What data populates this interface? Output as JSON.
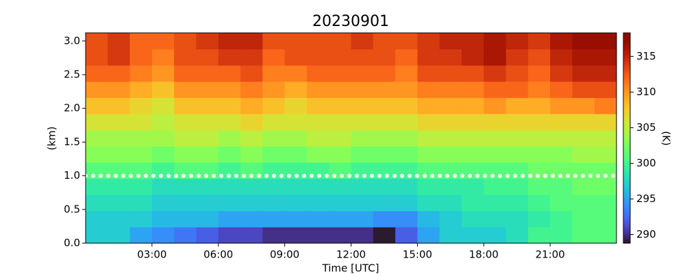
{
  "chart_data": {
    "type": "heatmap",
    "title": "20230901",
    "xlabel": "Time [UTC]",
    "ylabel": "(km)",
    "colorbar_label": "(K)",
    "colormap": "turbo",
    "xlim": [
      0,
      24
    ],
    "ylim": [
      0,
      3.12
    ],
    "clim": [
      288.8,
      318.3
    ],
    "xticks": [
      {
        "value": 3,
        "label": "03:00"
      },
      {
        "value": 6,
        "label": "06:00"
      },
      {
        "value": 9,
        "label": "09:00"
      },
      {
        "value": 12,
        "label": "12:00"
      },
      {
        "value": 15,
        "label": "15:00"
      },
      {
        "value": 18,
        "label": "18:00"
      },
      {
        "value": 21,
        "label": "21:00"
      }
    ],
    "yticks": [
      {
        "value": 0,
        "label": "0.0"
      },
      0.5,
      {
        "value": 1,
        "label": "1.0"
      },
      1.5,
      {
        "value": 2,
        "label": "2.0"
      },
      2.5,
      {
        "value": 3,
        "label": "3.0"
      }
    ],
    "cticks": [
      290,
      295,
      300,
      305,
      310,
      315
    ],
    "hline": 1,
    "hline_color": "#ffffff",
    "xbins": [
      0,
      1,
      2,
      3,
      4,
      5,
      6,
      7,
      8,
      9,
      10,
      11,
      12,
      13,
      14,
      15,
      16,
      17,
      18,
      19,
      20,
      21,
      22,
      23,
      24
    ],
    "ybins": [
      0,
      0.24,
      0.48,
      0.72,
      0.96,
      1.2,
      1.44,
      1.68,
      1.92,
      2.16,
      2.4,
      2.64,
      2.88,
      3.12
    ],
    "z": [
      [
        297,
        297,
        295,
        294,
        293,
        292,
        291,
        291,
        290,
        290,
        290,
        290,
        290,
        289,
        292,
        295,
        297,
        297,
        297,
        298,
        300,
        300,
        301,
        301
      ],
      [
        297,
        297,
        297,
        296,
        296,
        296,
        295,
        295,
        295,
        295,
        295,
        295,
        295,
        294,
        294,
        296,
        297,
        298,
        298,
        298,
        299,
        300,
        301,
        301
      ],
      [
        298,
        298,
        298,
        297,
        297,
        297,
        297,
        297,
        297,
        297,
        297,
        297,
        297,
        297,
        297,
        298,
        298,
        299,
        299,
        299,
        300,
        301,
        301,
        301
      ],
      [
        299,
        299,
        299,
        298,
        298,
        298,
        298,
        298,
        298,
        298,
        298,
        298,
        298,
        298,
        298,
        299,
        299,
        299,
        300,
        300,
        301,
        301,
        302,
        302
      ],
      [
        301,
        301,
        301,
        300,
        301,
        301,
        300,
        301,
        300,
        300,
        300,
        301,
        300,
        300,
        300,
        301,
        301,
        301,
        301,
        301,
        302,
        302,
        302,
        302
      ],
      [
        303,
        303,
        303,
        302,
        303,
        303,
        302,
        303,
        302,
        302,
        303,
        303,
        302,
        302,
        302,
        303,
        303,
        303,
        303,
        303,
        303,
        303,
        304,
        304
      ],
      [
        304,
        304,
        304,
        304,
        305,
        305,
        304,
        305,
        304,
        304,
        305,
        305,
        304,
        304,
        304,
        305,
        305,
        305,
        305,
        305,
        305,
        305,
        305,
        305
      ],
      [
        306,
        306,
        306,
        305,
        306,
        306,
        306,
        307,
        306,
        306,
        306,
        306,
        306,
        306,
        306,
        307,
        307,
        307,
        307,
        307,
        307,
        307,
        307,
        307
      ],
      [
        308,
        308,
        307,
        306,
        308,
        308,
        308,
        309,
        308,
        307,
        308,
        308,
        308,
        308,
        308,
        309,
        309,
        309,
        310,
        309,
        309,
        310,
        310,
        311
      ],
      [
        310,
        310,
        309,
        308,
        310,
        310,
        310,
        311,
        310,
        309,
        310,
        310,
        310,
        310,
        310,
        311,
        311,
        311,
        312,
        312,
        311,
        312,
        313,
        313
      ],
      [
        312,
        312,
        311,
        310,
        312,
        312,
        312,
        313,
        311,
        311,
        312,
        312,
        312,
        312,
        311,
        313,
        313,
        313,
        314,
        313,
        312,
        314,
        315,
        315
      ],
      [
        313,
        314,
        312,
        311,
        313,
        313,
        314,
        314,
        312,
        313,
        313,
        313,
        313,
        313,
        312,
        314,
        314,
        315,
        316,
        314,
        313,
        315,
        316,
        316
      ],
      [
        313,
        314,
        312,
        312,
        313,
        314,
        315,
        315,
        313,
        313,
        313,
        313,
        314,
        313,
        313,
        314,
        315,
        315,
        316,
        315,
        314,
        316,
        317,
        317
      ]
    ]
  }
}
